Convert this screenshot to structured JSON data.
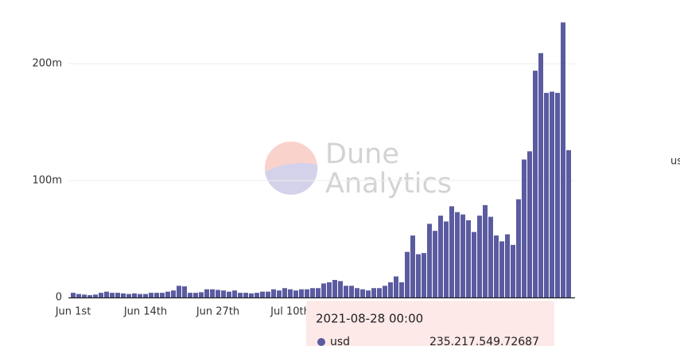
{
  "chart_data": {
    "type": "bar",
    "watermark": [
      "Dune",
      "Analytics"
    ],
    "categories": [
      "Jun 1st",
      null,
      null,
      null,
      null,
      null,
      null,
      null,
      null,
      null,
      null,
      null,
      null,
      "Jun 14th",
      null,
      null,
      null,
      null,
      null,
      null,
      null,
      null,
      null,
      null,
      null,
      null,
      "Jun 27th",
      null,
      null,
      null,
      null,
      null,
      null,
      null,
      null,
      null,
      null,
      null,
      null,
      "Jul 10th",
      null,
      null,
      null,
      null,
      null,
      null,
      null,
      null,
      null,
      null,
      null,
      null,
      null,
      null,
      null,
      null,
      null,
      null,
      null,
      null,
      null,
      null,
      null,
      null,
      null,
      null,
      null,
      null,
      null,
      null,
      null,
      null,
      null,
      null,
      null,
      null,
      null,
      null,
      null,
      null,
      null,
      null,
      null,
      null,
      null,
      null,
      null,
      null,
      null,
      null
    ],
    "series": [
      {
        "name": "usd",
        "color": "#5b5ba1",
        "values": [
          4000000,
          3000000,
          2500000,
          2000000,
          2500000,
          4000000,
          5000000,
          4000000,
          4000000,
          3500000,
          3000000,
          3500000,
          3000000,
          3000000,
          4000000,
          4000000,
          4000000,
          5000000,
          6000000,
          10000000,
          9500000,
          4000000,
          4000000,
          4500000,
          7000000,
          7000000,
          6500000,
          6000000,
          5000000,
          6000000,
          4000000,
          4000000,
          3500000,
          4000000,
          5000000,
          5000000,
          7000000,
          6000000,
          8000000,
          7000000,
          6000000,
          7000000,
          7000000,
          8000000,
          8000000,
          12000000,
          13000000,
          15000000,
          14000000,
          10000000,
          10000000,
          8000000,
          7000000,
          6000000,
          8000000,
          8000000,
          10000000,
          13000000,
          18000000,
          13000000,
          39000000,
          53000000,
          37000000,
          38000000,
          63000000,
          57000000,
          70000000,
          65000000,
          78000000,
          73000000,
          71000000,
          66000000,
          56000000,
          70000000,
          79000000,
          69000000,
          53000000,
          48000000,
          54000000,
          45000000,
          84000000,
          118000000,
          125000000,
          194000000,
          209000000,
          175000000,
          176000000,
          175000000,
          235217549.72687,
          126000000
        ]
      }
    ],
    "ylim": [
      0,
      250000000
    ],
    "yticks": [
      0,
      {
        "value": 100000000,
        "label": "100m"
      },
      {
        "value": 200000000,
        "label": "200m"
      }
    ],
    "grid": true,
    "tooltip": {
      "title": "2021-08-28 00:00",
      "value_label": "235.217.549.72687"
    }
  }
}
